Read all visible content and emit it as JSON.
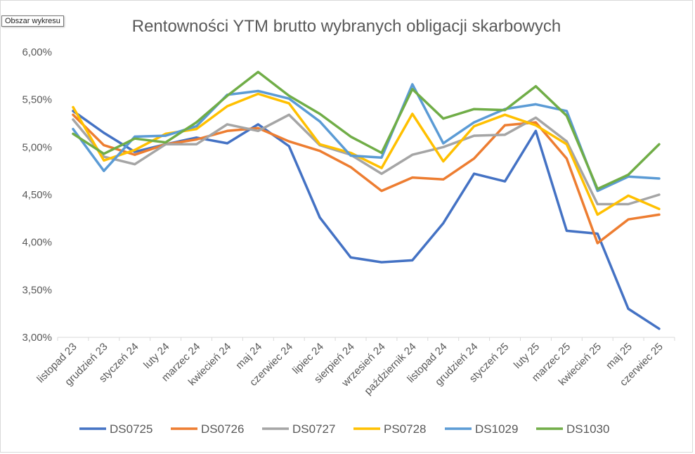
{
  "tooltip": "Obszar wykresu",
  "chart_data": {
    "type": "line",
    "title": "Rentowności YTM brutto wybranych obligacji skarbowych",
    "xlabel": "",
    "ylabel": "",
    "ylim": [
      3.0,
      6.0
    ],
    "yticks": [
      "3,00%",
      "3,50%",
      "4,00%",
      "4,50%",
      "5,00%",
      "5,50%",
      "6,00%"
    ],
    "ytick_values": [
      3.0,
      3.5,
      4.0,
      4.5,
      5.0,
      5.5,
      6.0
    ],
    "grid": false,
    "legend_position": "bottom",
    "categories": [
      "listopad 23",
      "grudzień 23",
      "styczeń 24",
      "luty 24",
      "marzec 24",
      "kwiecień 24",
      "maj 24",
      "czerwiec 24",
      "lipiec 24",
      "sierpień 24",
      "wrzesień 24",
      "październik 24",
      "listopad 24",
      "grudzień 24",
      "styczeń 25",
      "luty 25",
      "marzec 25",
      "kwiecień 25",
      "maj 25",
      "czerwiec 25"
    ],
    "series": [
      {
        "name": "DS0725",
        "color": "#4472C4",
        "values": [
          5.38,
          5.15,
          4.95,
          5.03,
          5.1,
          5.04,
          5.24,
          5.01,
          4.26,
          3.84,
          3.79,
          3.81,
          4.2,
          4.72,
          4.64,
          5.17,
          4.12,
          4.09,
          3.3,
          3.09
        ]
      },
      {
        "name": "DS0726",
        "color": "#ED7D31",
        "values": [
          5.34,
          5.02,
          4.92,
          5.03,
          5.08,
          5.17,
          5.2,
          5.06,
          4.96,
          4.79,
          4.54,
          4.68,
          4.66,
          4.88,
          5.23,
          5.26,
          4.88,
          3.99,
          4.24,
          4.29
        ]
      },
      {
        "name": "DS0727",
        "color": "#A5A5A5",
        "values": [
          5.29,
          4.9,
          4.82,
          5.03,
          5.03,
          5.24,
          5.17,
          5.34,
          5.02,
          4.92,
          4.72,
          4.92,
          5.0,
          5.12,
          5.13,
          5.31,
          5.06,
          4.4,
          4.4,
          4.5
        ]
      },
      {
        "name": "PS0728",
        "color": "#FFC000",
        "values": [
          5.42,
          4.86,
          4.97,
          5.14,
          5.19,
          5.43,
          5.56,
          5.46,
          5.03,
          4.94,
          4.78,
          5.35,
          4.85,
          5.22,
          5.34,
          5.23,
          5.03,
          4.29,
          4.49,
          4.35
        ]
      },
      {
        "name": "DS1029",
        "color": "#5B9BD5",
        "values": [
          5.19,
          4.75,
          5.11,
          5.12,
          5.22,
          5.55,
          5.59,
          5.51,
          5.27,
          4.91,
          4.89,
          5.66,
          5.04,
          5.26,
          5.4,
          5.45,
          5.38,
          4.54,
          4.69,
          4.67
        ]
      },
      {
        "name": "DS1030",
        "color": "#70AD47",
        "values": [
          5.14,
          4.93,
          5.09,
          5.05,
          5.26,
          5.54,
          5.79,
          5.54,
          5.35,
          5.11,
          4.94,
          5.61,
          5.3,
          5.4,
          5.39,
          5.64,
          5.33,
          4.56,
          4.71,
          5.03
        ]
      }
    ]
  }
}
